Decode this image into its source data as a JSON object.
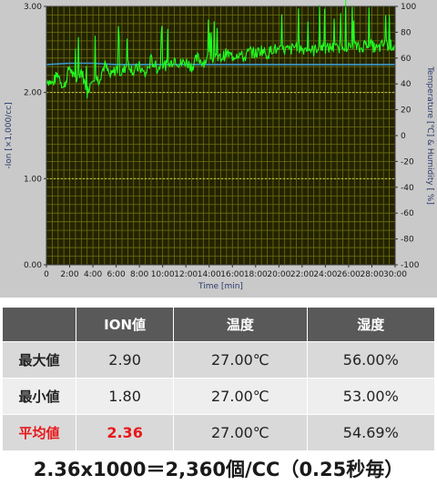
{
  "chart_data": {
    "type": "line",
    "xlabel": "Time [min]",
    "ylabel_left": "-Ion [×1,000/cc]",
    "ylabel_right": "Temperature [℃] & Humidity [ %]",
    "x_ticks": [
      "0",
      "2:00",
      "4:00",
      "6:00",
      "8:00",
      "10:00",
      "12:00",
      "14:00",
      "16:00",
      "18:00",
      "20:00",
      "22:00",
      "24:00",
      "26:00",
      "28:00",
      "30:00"
    ],
    "y_left_ticks": [
      "3.00",
      "2.00",
      "1.00",
      "0.00"
    ],
    "y_right_ticks": [
      "100",
      "80",
      "60",
      "40",
      "20",
      "0",
      "-20",
      "-40",
      "-60",
      "-80",
      "-100"
    ],
    "xlim": [
      0,
      30
    ],
    "ylim_left": [
      0,
      3
    ],
    "ylim_right": [
      -100,
      100
    ],
    "grid": true,
    "colors": {
      "plot_bg": "#232300",
      "grid": "#6f6f12",
      "ion": "#22ff22",
      "humidity": "#3c9bd2"
    },
    "series": [
      {
        "axis": "left",
        "x": [
          0,
          0.5,
          1,
          1.5,
          2,
          2.5,
          3,
          3.5,
          4,
          4.5,
          5,
          5.5,
          6,
          6.5,
          7,
          7.5,
          8,
          8.5,
          9,
          9.5,
          10,
          10.5,
          11,
          11.5,
          12,
          12.5,
          13,
          13.5,
          14,
          14.5,
          15,
          15.5,
          16,
          16.5,
          17,
          17.5,
          18,
          18.5,
          19,
          19.5,
          20,
          20.5,
          21,
          21.5,
          22,
          22.5,
          23,
          23.5,
          24,
          24.5,
          25,
          25.5,
          26,
          26.5,
          27,
          27.5,
          28,
          28.5,
          29,
          29.5,
          30
        ],
        "values": [
          2.16,
          2.1,
          2.22,
          2.05,
          2.3,
          2.12,
          2.26,
          2.0,
          2.2,
          2.15,
          2.32,
          2.18,
          2.28,
          2.22,
          2.35,
          2.24,
          2.3,
          2.2,
          2.38,
          2.28,
          2.33,
          2.3,
          2.4,
          2.33,
          2.36,
          2.3,
          2.4,
          2.35,
          2.42,
          2.38,
          2.4,
          2.45,
          2.42,
          2.46,
          2.4,
          2.48,
          2.45,
          2.5,
          2.44,
          2.52,
          2.47,
          2.5,
          2.49,
          2.55,
          2.5,
          2.52,
          2.48,
          2.55,
          2.5,
          2.53,
          2.5,
          2.56,
          2.52,
          2.55,
          2.5,
          2.58,
          2.54,
          2.5,
          2.56,
          2.55,
          2.54
        ]
      },
      {
        "axis": "right",
        "x": [
          0,
          2,
          4,
          6,
          8,
          10,
          12,
          14,
          16,
          18,
          20,
          22,
          24,
          26,
          28,
          30
        ],
        "values": [
          55,
          56,
          56,
          55,
          55,
          55,
          55,
          55,
          55,
          55,
          55,
          55,
          55,
          55,
          55,
          55
        ]
      }
    ]
  },
  "table": {
    "headers": [
      "",
      "ION値",
      "温度",
      "湿度"
    ],
    "rows": [
      {
        "label": "最大値",
        "ion": "2.90",
        "temp": "27.00℃",
        "hum": "56.00%"
      },
      {
        "label": "最小値",
        "ion": "1.80",
        "temp": "27.00℃",
        "hum": "53.00%"
      },
      {
        "label": "平均値",
        "ion": "2.36",
        "temp": "27.00℃",
        "hum": "54.69%"
      }
    ]
  },
  "formula": "2.36x1000＝2,360個/CC（0.25秒毎）"
}
